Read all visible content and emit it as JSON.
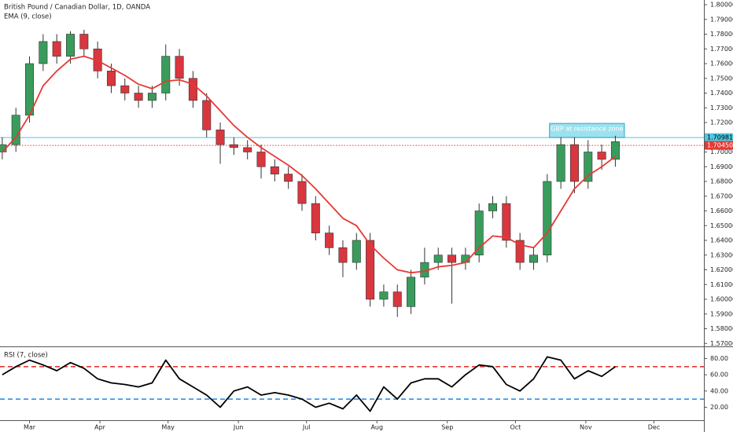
{
  "chart_data": [
    {
      "type": "candlestick",
      "title": "British Pound / Canadian Dollar, 1D, OANDA",
      "x": [
        -12,
        -6,
        0,
        6,
        12,
        18,
        24,
        30,
        36,
        42,
        48,
        54,
        60,
        66,
        72,
        78,
        84,
        90,
        96,
        102,
        108,
        114,
        120,
        126,
        132,
        138,
        144,
        150,
        156,
        162,
        168,
        174,
        180,
        186,
        192,
        198,
        204,
        210,
        216,
        222,
        228,
        234,
        240,
        246,
        252,
        258
      ],
      "open": [
        1.7,
        1.705,
        1.725,
        1.76,
        1.775,
        1.765,
        1.78,
        1.77,
        1.755,
        1.745,
        1.74,
        1.735,
        1.74,
        1.765,
        1.75,
        1.735,
        1.715,
        1.705,
        1.703,
        1.7,
        1.69,
        1.685,
        1.68,
        1.665,
        1.645,
        1.635,
        1.625,
        1.64,
        1.6,
        1.605,
        1.595,
        1.615,
        1.625,
        1.63,
        1.625,
        1.63,
        1.66,
        1.665,
        1.64,
        1.625,
        1.63,
        1.68,
        1.705,
        1.68,
        1.7,
        1.695
      ],
      "high": [
        1.71,
        1.73,
        1.765,
        1.78,
        1.78,
        1.782,
        1.783,
        1.775,
        1.76,
        1.75,
        1.745,
        1.745,
        1.773,
        1.77,
        1.755,
        1.74,
        1.72,
        1.71,
        1.708,
        1.705,
        1.695,
        1.69,
        1.685,
        1.67,
        1.65,
        1.64,
        1.645,
        1.645,
        1.61,
        1.61,
        1.62,
        1.635,
        1.635,
        1.635,
        1.635,
        1.665,
        1.67,
        1.67,
        1.645,
        1.635,
        1.685,
        1.71,
        1.71,
        1.708,
        1.705,
        1.711
      ],
      "low": [
        1.695,
        1.7,
        1.72,
        1.755,
        1.76,
        1.76,
        1.765,
        1.75,
        1.74,
        1.735,
        1.73,
        1.73,
        1.735,
        1.745,
        1.73,
        1.71,
        1.692,
        1.698,
        1.695,
        1.682,
        1.68,
        1.675,
        1.66,
        1.64,
        1.63,
        1.615,
        1.62,
        1.595,
        1.595,
        1.588,
        1.59,
        1.61,
        1.62,
        1.597,
        1.62,
        1.625,
        1.655,
        1.635,
        1.62,
        1.62,
        1.625,
        1.675,
        1.672,
        1.675,
        1.688,
        1.69
      ],
      "close": [
        1.705,
        1.725,
        1.76,
        1.775,
        1.765,
        1.78,
        1.77,
        1.755,
        1.745,
        1.74,
        1.735,
        1.74,
        1.765,
        1.75,
        1.735,
        1.715,
        1.705,
        1.703,
        1.7,
        1.69,
        1.685,
        1.68,
        1.665,
        1.645,
        1.635,
        1.625,
        1.64,
        1.6,
        1.605,
        1.595,
        1.615,
        1.625,
        1.63,
        1.625,
        1.63,
        1.66,
        1.665,
        1.64,
        1.625,
        1.63,
        1.68,
        1.705,
        1.68,
        1.7,
        1.695,
        1.707
      ],
      "up_color": "#3a9c5c",
      "down_color": "#d9363e",
      "series": [
        {
          "name": "EMA (9, close)",
          "color": "#e53935",
          "values": [
            1.7,
            1.71,
            1.725,
            1.745,
            1.755,
            1.763,
            1.765,
            1.762,
            1.757,
            1.752,
            1.746,
            1.743,
            1.748,
            1.749,
            1.746,
            1.738,
            1.728,
            1.718,
            1.71,
            1.703,
            1.697,
            1.691,
            1.684,
            1.675,
            1.665,
            1.655,
            1.65,
            1.637,
            1.628,
            1.62,
            1.618,
            1.619,
            1.622,
            1.623,
            1.625,
            1.635,
            1.643,
            1.642,
            1.637,
            1.635,
            1.645,
            1.66,
            1.675,
            1.684,
            1.69,
            1.697
          ]
        }
      ],
      "levels": [
        {
          "value": 1.70981,
          "label": "1.70981",
          "color": "#4dc8e0",
          "style": "solid"
        },
        {
          "value": 1.7045,
          "label": "1.70450",
          "color": "#e53935",
          "style": "dotted"
        }
      ],
      "annotation": {
        "text": "GBP at resistance zone",
        "x_range": [
          229,
          262
        ],
        "y_range": [
          1.70981,
          1.7194
        ]
      },
      "xlim": [
        -13,
        297
      ],
      "ylim": [
        1.568,
        1.8032
      ],
      "yticks": [
        {
          "value": 1.57,
          "label": "1.57000"
        },
        {
          "value": 1.58,
          "label": "1.58000"
        },
        {
          "value": 1.59,
          "label": "1.59000"
        },
        {
          "value": 1.6,
          "label": "1.60000"
        },
        {
          "value": 1.61,
          "label": "1.61000"
        },
        {
          "value": 1.62,
          "label": "1.62000"
        },
        {
          "value": 1.63,
          "label": "1.63000"
        },
        {
          "value": 1.64,
          "label": "1.64000"
        },
        {
          "value": 1.65,
          "label": "1.65000"
        },
        {
          "value": 1.66,
          "label": "1.66000"
        },
        {
          "value": 1.67,
          "label": "1.67000"
        },
        {
          "value": 1.68,
          "label": "1.68000"
        },
        {
          "value": 1.69,
          "label": "1.69000"
        },
        {
          "value": 1.7,
          "label": "1.70000"
        },
        {
          "value": 1.71,
          "label": "1.71000"
        },
        {
          "value": 1.72,
          "label": "1.72000"
        },
        {
          "value": 1.73,
          "label": "1.73000"
        },
        {
          "value": 1.74,
          "label": "1.74000"
        },
        {
          "value": 1.75,
          "label": "1.75000"
        },
        {
          "value": 1.76,
          "label": "1.76000"
        },
        {
          "value": 1.77,
          "label": "1.77000"
        },
        {
          "value": 1.78,
          "label": "1.78000"
        },
        {
          "value": 1.79,
          "label": "1.79000"
        },
        {
          "value": 1.8,
          "label": "1.80000"
        }
      ]
    },
    {
      "type": "line",
      "title": "RSI (7, close)",
      "x": [
        -12,
        -6,
        0,
        6,
        12,
        18,
        24,
        30,
        36,
        42,
        48,
        54,
        60,
        66,
        72,
        78,
        84,
        90,
        96,
        102,
        108,
        114,
        120,
        126,
        132,
        138,
        144,
        150,
        156,
        162,
        168,
        174,
        180,
        186,
        192,
        198,
        204,
        210,
        216,
        222,
        228,
        234,
        240,
        246,
        252,
        258
      ],
      "series": [
        {
          "name": "RSI (7, close)",
          "color": "#000000",
          "values": [
            60,
            70,
            78,
            72,
            65,
            75,
            68,
            55,
            50,
            48,
            45,
            50,
            78,
            55,
            45,
            35,
            20,
            40,
            45,
            35,
            38,
            35,
            30,
            20,
            25,
            18,
            35,
            15,
            45,
            30,
            50,
            55,
            55,
            45,
            60,
            72,
            70,
            48,
            40,
            55,
            82,
            78,
            55,
            65,
            58,
            70
          ]
        }
      ],
      "levels": [
        {
          "value": 70,
          "color": "#e53935"
        },
        {
          "value": 30,
          "color": "#1e88e5"
        }
      ],
      "xlim": [
        -13,
        297
      ],
      "ylim": [
        4,
        94
      ],
      "yticks": [
        {
          "value": 20,
          "label": "20.00"
        },
        {
          "value": 40,
          "label": "40.00"
        },
        {
          "value": 60,
          "label": "60.00"
        },
        {
          "value": 80,
          "label": "80.00"
        }
      ],
      "xticks": [
        {
          "value": 0,
          "label": "Mar"
        },
        {
          "value": 31,
          "label": "Apr"
        },
        {
          "value": 61,
          "label": "May"
        },
        {
          "value": 92,
          "label": "Jun"
        },
        {
          "value": 122,
          "label": "Jul"
        },
        {
          "value": 153,
          "label": "Aug"
        },
        {
          "value": 184,
          "label": "Sep"
        },
        {
          "value": 214,
          "label": "Oct"
        },
        {
          "value": 245,
          "label": "Nov"
        },
        {
          "value": 275,
          "label": "Dec"
        }
      ]
    }
  ]
}
